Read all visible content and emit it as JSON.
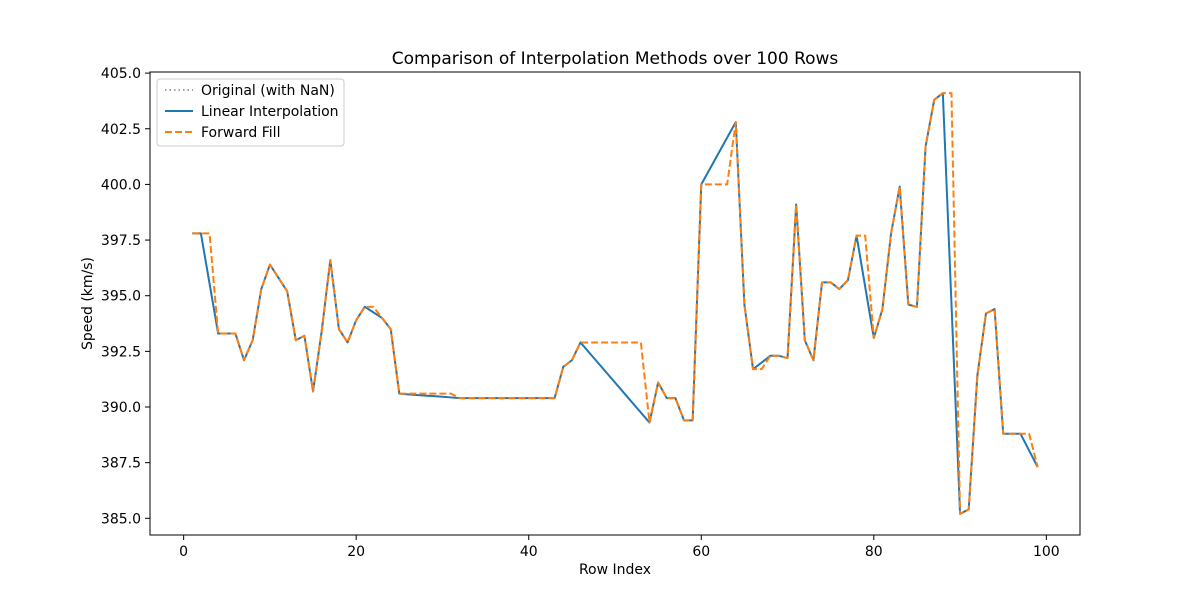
{
  "chart_data": {
    "type": "line",
    "title": "Comparison of Interpolation Methods over 100 Rows",
    "xlabel": "Row Index",
    "ylabel": "Speed (km/s)",
    "xlim": [
      -3.9,
      103.9
    ],
    "ylim": [
      384.25,
      405.05
    ],
    "xticks": [
      0,
      20,
      40,
      60,
      80,
      100
    ],
    "yticks": [
      385.0,
      387.5,
      390.0,
      392.5,
      395.0,
      397.5,
      400.0,
      402.5,
      405.0
    ],
    "ytick_labels": [
      "385.0",
      "387.5",
      "390.0",
      "392.5",
      "395.0",
      "397.5",
      "400.0",
      "402.5",
      "405.0"
    ],
    "xtick_labels": [
      "0",
      "20",
      "40",
      "60",
      "80",
      "100"
    ],
    "grid": false,
    "legend_position": "top-left",
    "series": [
      {
        "name": "Original (with NaN)",
        "color": "#808080",
        "style": "dotted",
        "values": [
          null,
          397.8,
          397.8,
          null,
          393.3,
          393.3,
          393.3,
          392.1,
          393.0,
          395.3,
          396.4,
          395.8,
          395.2,
          393.0,
          393.2,
          390.7,
          393.4,
          396.6,
          393.5,
          392.9,
          393.9,
          394.5,
          null,
          394.0,
          393.5,
          390.6,
          null,
          null,
          null,
          null,
          null,
          null,
          390.4,
          null,
          null,
          null,
          null,
          null,
          null,
          null,
          null,
          null,
          null,
          390.4,
          391.8,
          392.1,
          392.9,
          null,
          null,
          null,
          null,
          null,
          null,
          null,
          389.3,
          391.1,
          390.4,
          390.4,
          389.4,
          389.4,
          400.0,
          null,
          null,
          null,
          402.8,
          394.6,
          391.7,
          null,
          392.3,
          392.3,
          392.2,
          399.1,
          393.0,
          392.1,
          395.6,
          395.6,
          395.3,
          395.7,
          397.7,
          null,
          393.1,
          394.4,
          397.8,
          399.9,
          394.6,
          394.5,
          401.7,
          403.8,
          404.1,
          null,
          385.2,
          385.4,
          391.4,
          394.2,
          394.4,
          388.8,
          388.8,
          388.8,
          null,
          387.3
        ]
      },
      {
        "name": "Linear Interpolation",
        "color": "#1f77b4",
        "style": "solid",
        "values": [
          null,
          397.8,
          397.8,
          395.55,
          393.3,
          393.3,
          393.3,
          392.1,
          393.0,
          395.3,
          396.4,
          395.8,
          395.2,
          393.0,
          393.2,
          390.7,
          393.4,
          396.6,
          393.5,
          392.9,
          393.9,
          394.5,
          394.25,
          394.0,
          393.5,
          390.6,
          390.57,
          390.54,
          390.51,
          390.49,
          390.46,
          390.43,
          390.4,
          390.4,
          390.4,
          390.4,
          390.4,
          390.4,
          390.4,
          390.4,
          390.4,
          390.4,
          390.4,
          390.4,
          391.8,
          392.1,
          392.9,
          392.45,
          392.0,
          391.55,
          391.1,
          390.65,
          390.2,
          389.75,
          389.3,
          391.1,
          390.4,
          390.4,
          389.4,
          389.4,
          400.0,
          400.7,
          401.4,
          402.1,
          402.8,
          394.6,
          391.7,
          392.0,
          392.3,
          392.3,
          392.2,
          399.1,
          393.0,
          392.1,
          395.6,
          395.6,
          395.3,
          395.7,
          397.7,
          395.4,
          393.1,
          394.4,
          397.8,
          399.9,
          394.6,
          394.5,
          401.7,
          403.8,
          404.1,
          394.65,
          385.2,
          385.4,
          391.4,
          394.2,
          394.4,
          388.8,
          388.8,
          388.8,
          388.05,
          387.3
        ]
      },
      {
        "name": "Forward Fill",
        "color": "#ff7f0e",
        "style": "dashed",
        "values": [
          null,
          397.8,
          397.8,
          397.8,
          393.3,
          393.3,
          393.3,
          392.1,
          393.0,
          395.3,
          396.4,
          395.8,
          395.2,
          393.0,
          393.2,
          390.7,
          393.4,
          396.6,
          393.5,
          392.9,
          393.9,
          394.5,
          394.5,
          394.0,
          393.5,
          390.6,
          390.6,
          390.6,
          390.6,
          390.6,
          390.6,
          390.6,
          390.4,
          390.4,
          390.4,
          390.4,
          390.4,
          390.4,
          390.4,
          390.4,
          390.4,
          390.4,
          390.4,
          390.4,
          391.8,
          392.1,
          392.9,
          392.9,
          392.9,
          392.9,
          392.9,
          392.9,
          392.9,
          392.9,
          389.3,
          391.1,
          390.4,
          390.4,
          389.4,
          389.4,
          400.0,
          400.0,
          400.0,
          400.0,
          402.8,
          394.6,
          391.7,
          391.7,
          392.3,
          392.3,
          392.2,
          399.1,
          393.0,
          392.1,
          395.6,
          395.6,
          395.3,
          395.7,
          397.7,
          397.7,
          393.1,
          394.4,
          397.8,
          399.9,
          394.6,
          394.5,
          401.7,
          403.8,
          404.1,
          404.1,
          385.2,
          385.4,
          391.4,
          394.2,
          394.4,
          388.8,
          388.8,
          388.8,
          388.8,
          387.3
        ]
      }
    ]
  }
}
